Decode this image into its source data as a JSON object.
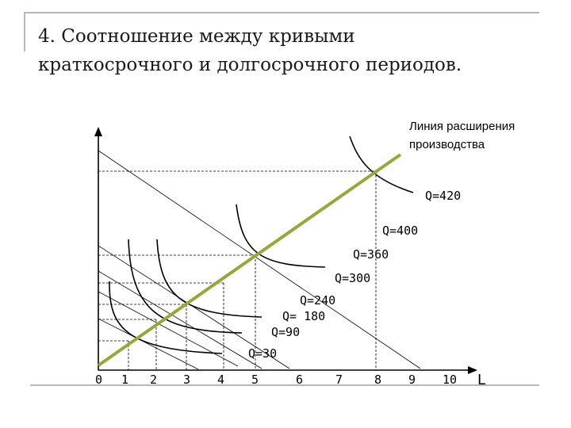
{
  "title": {
    "line1": "4. Соотношение между кривыми",
    "line2": "краткосрочного и долгосрочного периодов."
  },
  "expansion_line_label": {
    "line1": "Линия расширения",
    "line2": "производства"
  },
  "axis": {
    "x_label": "L",
    "ticks": [
      "0",
      "1",
      "2",
      "3",
      "4",
      "5",
      "6",
      "7",
      "8",
      "9",
      "10"
    ]
  },
  "quantity_labels": [
    "Q=420",
    "Q=400",
    "Q=360",
    "Q=300",
    "Q=240",
    "Q= 180",
    "Q=90",
    "Q=30"
  ],
  "colors": {
    "expansion_line": "#9aa53a",
    "curves": "#000000",
    "guides": "#000000"
  }
}
